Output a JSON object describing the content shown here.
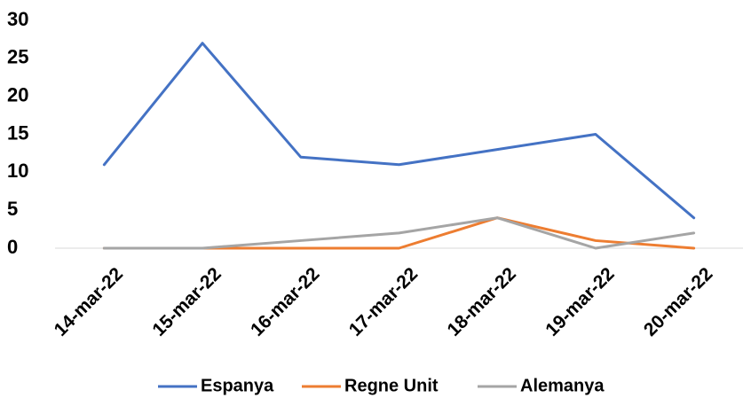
{
  "chart_data": {
    "type": "line",
    "categories": [
      "14-mar-22",
      "15-mar-22",
      "16-mar-22",
      "17-mar-22",
      "18-mar-22",
      "19-mar-22",
      "20-mar-22"
    ],
    "series": [
      {
        "name": "Espanya",
        "color": "#4472C4",
        "values": [
          11,
          27,
          12,
          11,
          13,
          15,
          4
        ]
      },
      {
        "name": "Regne Unit",
        "color": "#ED7D31",
        "values": [
          0,
          0,
          0,
          0,
          4,
          1,
          0
        ]
      },
      {
        "name": "Alemanya",
        "color": "#A5A5A5",
        "values": [
          0,
          0,
          1,
          2,
          4,
          0,
          2
        ]
      }
    ],
    "ylim": [
      0,
      30
    ],
    "yticks": [
      0,
      5,
      10,
      15,
      20,
      25,
      30
    ],
    "grid": false,
    "legend_position": "bottom"
  }
}
